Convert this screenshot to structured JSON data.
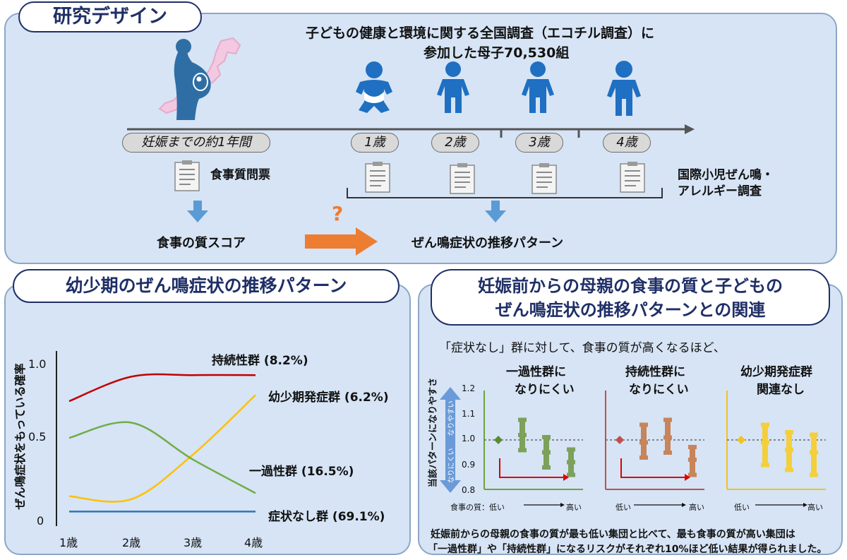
{
  "design": {
    "title": "研究デザイン",
    "study_line1": "子どもの健康と環境に関する全国調査（エコチル調査）に",
    "study_line2": "参加した母子70,530組",
    "period_label": "妊娠までの約1年間",
    "ages": [
      "1歳",
      "2歳",
      "3歳",
      "4歳"
    ],
    "questionnaire_label": "食事質問票",
    "survey_line1": "国際小児ぜん鳴・",
    "survey_line2": "アレルギー調査",
    "diet_score_label": "食事の質スコア",
    "question_mark": "?",
    "pattern_label": "ぜん鳴症状の推移パターン"
  },
  "trajectory": {
    "title": "幼少期のぜん鳴症状の推移パターン",
    "ylabel": "ぜん鳴症状をもっている確率",
    "yticks": [
      "1.0",
      "0.5",
      "0"
    ],
    "xticks": [
      "1歳",
      "2歳",
      "3歳",
      "4歳"
    ],
    "labels": {
      "persistent": "持続性群 (8.2%)",
      "late_onset": "幼少期発症群 (6.2%)",
      "transient": "一過性群 (16.5%)",
      "none": "症状なし群 (69.1%)"
    }
  },
  "association": {
    "title_line1": "妊娠前からの母親の食事の質と子どもの",
    "title_line2": "ぜん鳴症状の推移パターンとの関連",
    "intro": "「症状なし」群に対して、食事の質が高くなるほど、",
    "ylabel": "当該パターンになりやすさ",
    "arrow_up": "なりやすい",
    "arrow_down": "なりにくい",
    "yticks": [
      "1.2",
      "1.1",
      "1.0",
      "0.9",
      "0.8"
    ],
    "xaxis_prefix": "食事の質：低い",
    "low": "低い",
    "high": "高い",
    "panels": [
      {
        "title_line1": "一過性群に",
        "title_line2": "なりにくい",
        "color": "#70a33c"
      },
      {
        "title_line1": "持続性群に",
        "title_line2": "なりにくい",
        "color": "#c0504d"
      },
      {
        "title_line1": "幼少期発症群",
        "title_line2": "関連なし",
        "color": "#f2c31b"
      }
    ],
    "conclusion_line1": "妊娠前からの母親の食事の質が最も低い集団と比べて、最も食事の質が高い集団は",
    "conclusion_line2": "「一過性群」や「持続性群」になるリスクがそれぞれ10%ほど低い結果が得られました。"
  },
  "chart_data": [
    {
      "type": "line",
      "title": "幼少期のぜん鳴症状の推移パターン",
      "ylabel": "ぜん鳴症状をもっている確率",
      "x": [
        "1歳",
        "2歳",
        "3歳",
        "4歳"
      ],
      "ylim": [
        0,
        1.0
      ],
      "series": [
        {
          "name": "持続性群 (8.2%)",
          "values": [
            0.76,
            0.92,
            0.93,
            0.93
          ],
          "color": "#c00000"
        },
        {
          "name": "幼少期発症群 (6.2%)",
          "values": [
            0.14,
            0.12,
            0.41,
            0.8
          ],
          "color": "#ffc000"
        },
        {
          "name": "一過性群 (16.5%)",
          "values": [
            0.52,
            0.62,
            0.38,
            0.16
          ],
          "color": "#70ad47"
        },
        {
          "name": "症状なし群 (69.1%)",
          "values": [
            0.04,
            0.04,
            0.04,
            0.04
          ],
          "color": "#2e75b6"
        }
      ]
    },
    {
      "type": "scatter",
      "title": "一過性群になりにくい",
      "ylim": [
        0.8,
        1.2
      ],
      "reference": 1.0,
      "points": [
        {
          "estimate": 1.0,
          "low": 1.0,
          "high": 1.0
        },
        {
          "estimate": 1.02,
          "low": 0.95,
          "high": 1.09
        },
        {
          "estimate": 0.95,
          "low": 0.88,
          "high": 1.02
        },
        {
          "estimate": 0.91,
          "low": 0.85,
          "high": 0.97
        }
      ]
    },
    {
      "type": "scatter",
      "title": "持続性群になりにくい",
      "ylim": [
        0.8,
        1.2
      ],
      "reference": 1.0,
      "points": [
        {
          "estimate": 1.0,
          "low": 1.0,
          "high": 1.0
        },
        {
          "estimate": 0.99,
          "low": 0.92,
          "high": 1.07
        },
        {
          "estimate": 1.01,
          "low": 0.94,
          "high": 1.09
        },
        {
          "estimate": 0.92,
          "low": 0.85,
          "high": 0.98
        }
      ]
    },
    {
      "type": "scatter",
      "title": "幼少期発症群関連なし",
      "ylim": [
        0.8,
        1.2
      ],
      "reference": 1.0,
      "points": [
        {
          "estimate": 1.0,
          "low": 1.0,
          "high": 1.0
        },
        {
          "estimate": 0.99,
          "low": 0.89,
          "high": 1.07
        },
        {
          "estimate": 0.96,
          "low": 0.87,
          "high": 1.04
        },
        {
          "estimate": 0.95,
          "low": 0.85,
          "high": 1.03
        }
      ]
    }
  ]
}
